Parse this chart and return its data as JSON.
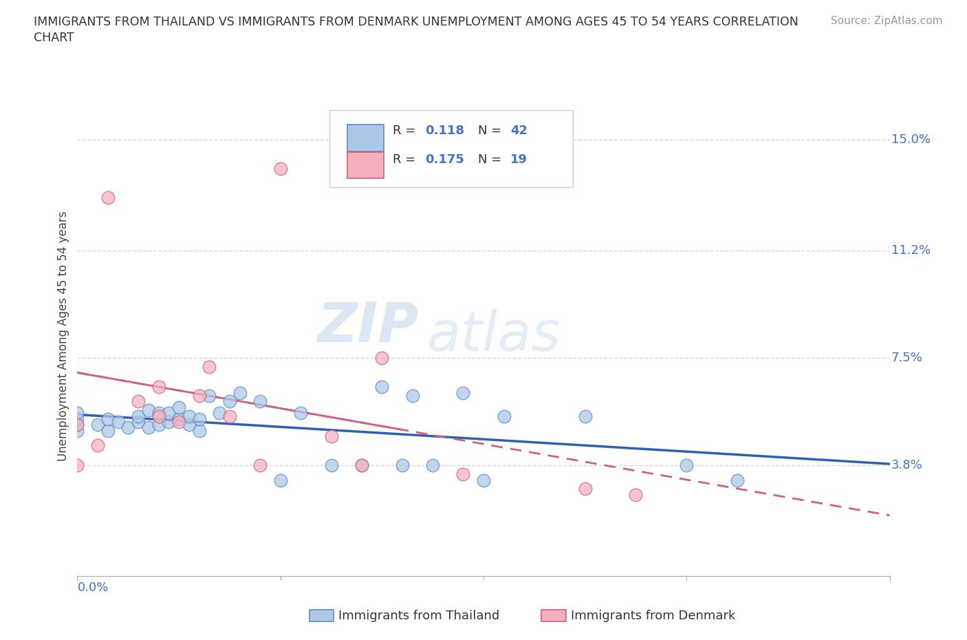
{
  "title_line1": "IMMIGRANTS FROM THAILAND VS IMMIGRANTS FROM DENMARK UNEMPLOYMENT AMONG AGES 45 TO 54 YEARS CORRELATION",
  "title_line2": "CHART",
  "source_text": "Source: ZipAtlas.com",
  "ylabel": "Unemployment Among Ages 45 to 54 years",
  "xlim": [
    0.0,
    0.08
  ],
  "ylim": [
    0.0,
    0.165
  ],
  "ytick_vals": [
    0.038,
    0.075,
    0.112,
    0.15
  ],
  "ytick_labels": [
    "3.8%",
    "7.5%",
    "11.2%",
    "15.0%"
  ],
  "xtick_vals": [
    0.0,
    0.02,
    0.04,
    0.06,
    0.08
  ],
  "xtick_label_left": "0.0%",
  "xtick_label_right": "8.0%",
  "watermark_zip": "ZIP",
  "watermark_atlas": "atlas",
  "legend_R1": "0.118",
  "legend_N1": "42",
  "legend_R2": "0.175",
  "legend_N2": "19",
  "color_thailand_fill": "#adc8e8",
  "color_thailand_edge": "#5b8ec4",
  "color_denmark_fill": "#f5b0c0",
  "color_denmark_edge": "#d06080",
  "color_trendline_thailand": "#3060b0",
  "color_trendline_denmark": "#d06080",
  "color_tick_label": "#4472c4",
  "color_grid": "#d0d8e8",
  "label_thailand": "Immigrants from Thailand",
  "label_denmark": "Immigrants from Denmark",
  "thailand_x": [
    0.0,
    0.0,
    0.0,
    0.0,
    0.002,
    0.003,
    0.003,
    0.004,
    0.005,
    0.006,
    0.006,
    0.007,
    0.007,
    0.008,
    0.008,
    0.009,
    0.009,
    0.01,
    0.01,
    0.011,
    0.011,
    0.012,
    0.012,
    0.013,
    0.014,
    0.015,
    0.016,
    0.018,
    0.02,
    0.022,
    0.025,
    0.028,
    0.03,
    0.032,
    0.033,
    0.035,
    0.038,
    0.04,
    0.042,
    0.05,
    0.06,
    0.065
  ],
  "thailand_y": [
    0.05,
    0.052,
    0.054,
    0.056,
    0.052,
    0.05,
    0.054,
    0.053,
    0.051,
    0.053,
    0.055,
    0.051,
    0.057,
    0.052,
    0.056,
    0.053,
    0.056,
    0.054,
    0.058,
    0.052,
    0.055,
    0.05,
    0.054,
    0.062,
    0.056,
    0.06,
    0.063,
    0.06,
    0.033,
    0.056,
    0.038,
    0.038,
    0.065,
    0.038,
    0.062,
    0.038,
    0.063,
    0.033,
    0.055,
    0.055,
    0.038,
    0.033
  ],
  "denmark_x": [
    0.0,
    0.0,
    0.002,
    0.003,
    0.006,
    0.008,
    0.008,
    0.01,
    0.012,
    0.013,
    0.015,
    0.018,
    0.02,
    0.025,
    0.028,
    0.03,
    0.038,
    0.05,
    0.055
  ],
  "denmark_y": [
    0.052,
    0.038,
    0.045,
    0.13,
    0.06,
    0.055,
    0.065,
    0.053,
    0.062,
    0.072,
    0.055,
    0.038,
    0.14,
    0.048,
    0.038,
    0.075,
    0.035,
    0.03,
    0.028
  ]
}
